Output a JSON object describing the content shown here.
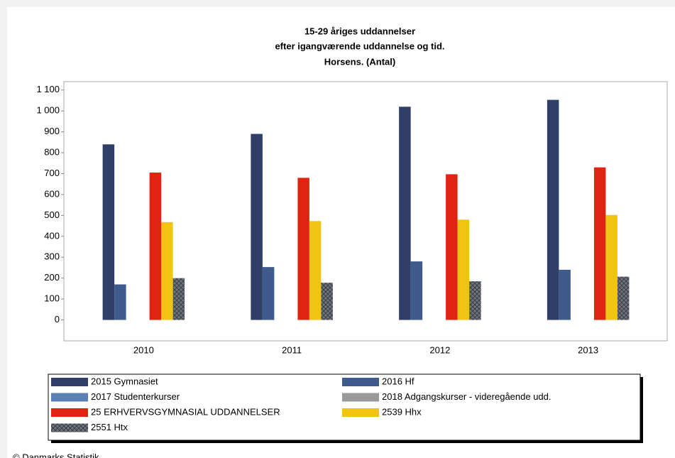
{
  "chart_data": {
    "type": "bar",
    "title": [
      "15-29 åriges uddannelser",
      "efter igangværende uddannelse og tid.",
      "Horsens. (Antal)"
    ],
    "categories": [
      "2010",
      "2011",
      "2012",
      "2013"
    ],
    "series": [
      {
        "name": "2015 Gymnasiet",
        "color": "#2f3f68",
        "values": [
          840,
          890,
          1020,
          1053
        ]
      },
      {
        "name": "2016 Hf",
        "color": "#3f5b8c",
        "values": [
          170,
          253,
          280,
          240
        ]
      },
      {
        "name": "2017 Studenterkurser",
        "color": "#5b80b6",
        "values": [
          0,
          0,
          0,
          0
        ]
      },
      {
        "name": "2018 Adgangskurser - videregående udd.",
        "color": "#9a9a9a",
        "values": [
          0,
          0,
          0,
          0
        ]
      },
      {
        "name": "25 ERHVERVSGYMNASIAL UDDANNELSER",
        "color": "#e02412",
        "values": [
          705,
          680,
          697,
          730
        ]
      },
      {
        "name": "2539 Hhx",
        "color": "#f0c412",
        "values": [
          468,
          473,
          480,
          502
        ]
      },
      {
        "name": "2551 Htx",
        "color": "#6f7480",
        "hatch": true,
        "values": [
          200,
          178,
          185,
          207
        ]
      }
    ],
    "ylim": [
      -100,
      1140
    ],
    "yticks": [
      0,
      100,
      200,
      300,
      400,
      500,
      600,
      700,
      800,
      900,
      {
        "value": 1000,
        "label": "1 000"
      },
      {
        "value": 1100,
        "label": "1 100"
      }
    ],
    "source": "© Danmarks Statistik"
  }
}
